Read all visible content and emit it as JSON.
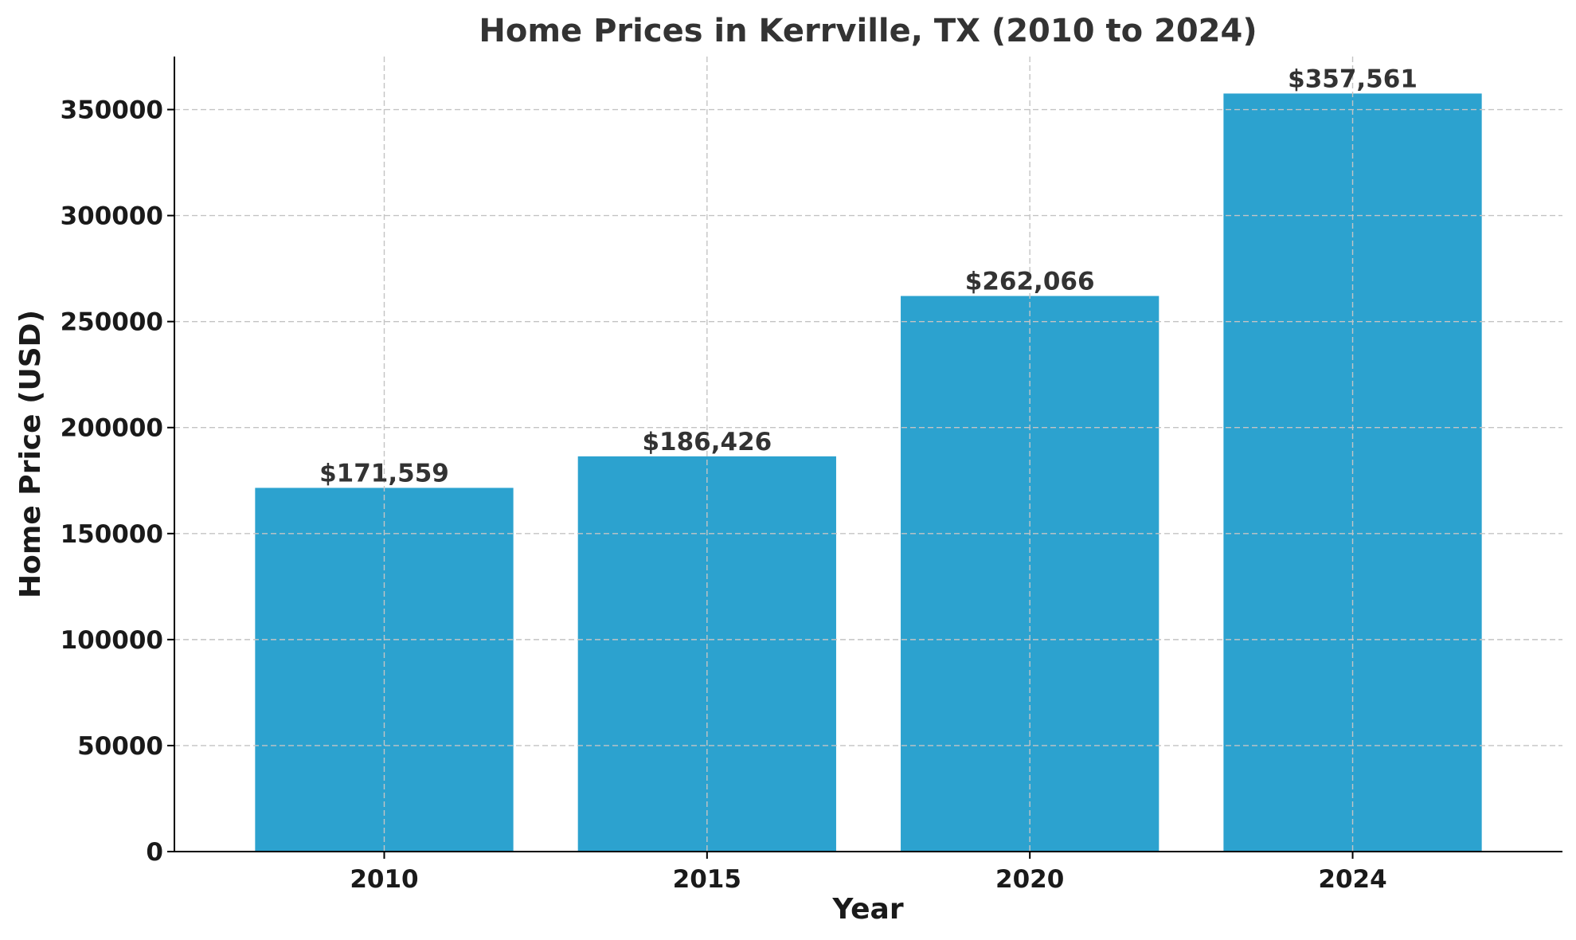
{
  "chart_data": {
    "type": "bar",
    "title": "Home Prices in Kerrville, TX (2010 to 2024)",
    "xlabel": "Year",
    "ylabel": "Home Price (USD)",
    "categories": [
      "2010",
      "2015",
      "2020",
      "2024"
    ],
    "values": [
      171559,
      186426,
      262066,
      357561
    ],
    "data_labels": [
      "$171,559",
      "$186,426",
      "$262,066",
      "$357,561"
    ],
    "ylim": [
      0,
      375000
    ],
    "yticks": [
      0,
      50000,
      100000,
      150000,
      200000,
      250000,
      300000,
      350000
    ],
    "ytick_labels": [
      "0",
      "50000",
      "100000",
      "150000",
      "200000",
      "250000",
      "300000",
      "350000"
    ],
    "grid": true,
    "bar_color": "#2ca2cf"
  }
}
